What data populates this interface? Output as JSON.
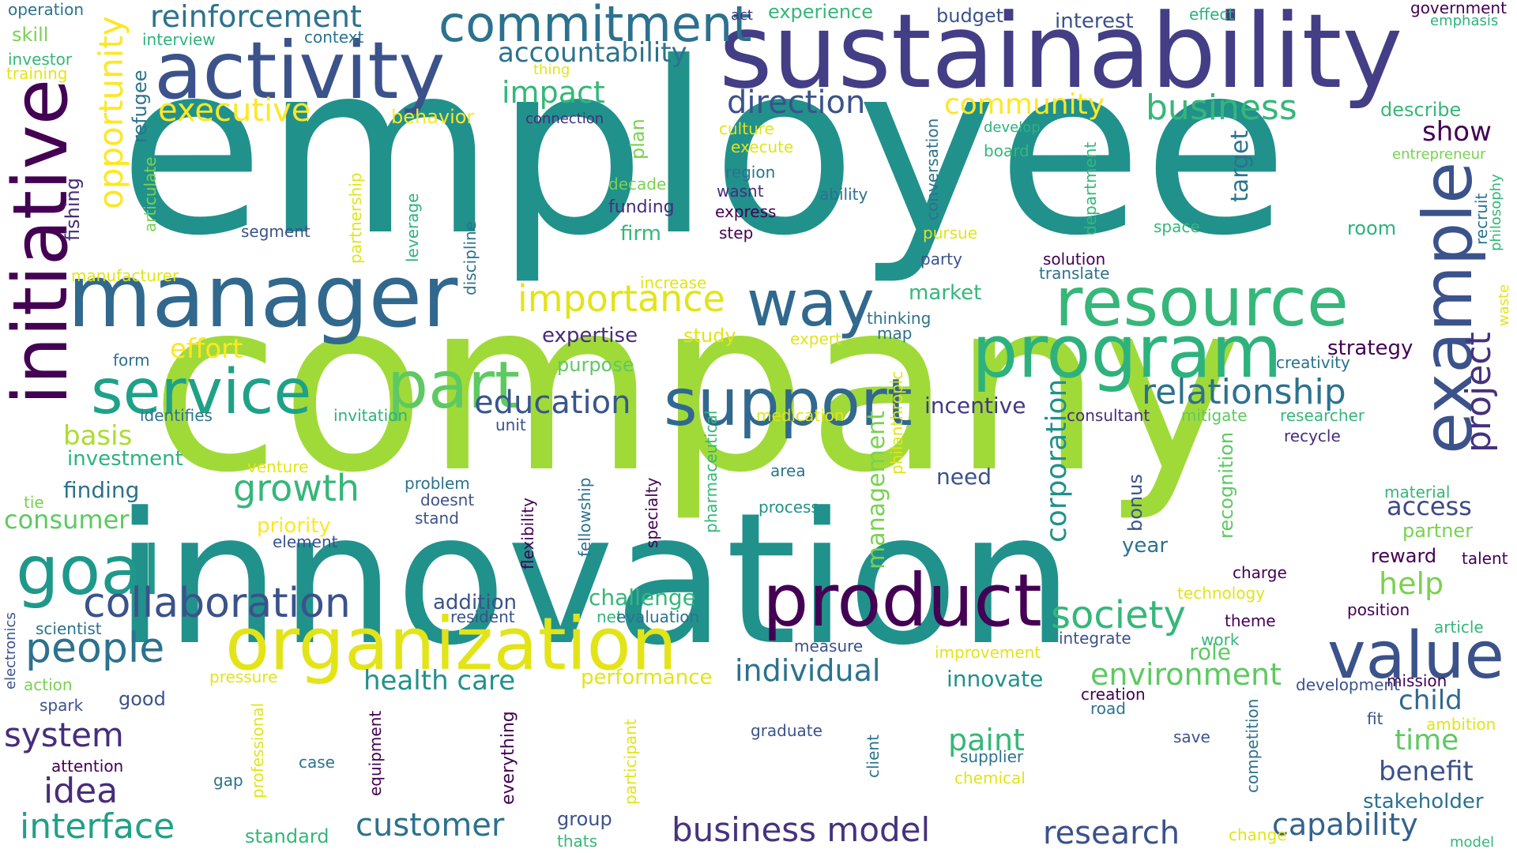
{
  "words": [
    {
      "text": "employee",
      "color": "#21918c"
    },
    {
      "text": "company",
      "color": "#a0da39"
    },
    {
      "text": "innovation",
      "color": "#21918c"
    },
    {
      "text": "sustainability",
      "color": "#433e85"
    },
    {
      "text": "manager",
      "color": "#31688e"
    },
    {
      "text": "activity",
      "color": "#3b528b"
    },
    {
      "text": "initiative",
      "color": "#440154"
    },
    {
      "text": "product",
      "color": "#440154"
    },
    {
      "text": "organization",
      "color": "#e2e418"
    },
    {
      "text": "program",
      "color": "#2db27d"
    },
    {
      "text": "resource",
      "color": "#35b779"
    },
    {
      "text": "example",
      "color": "#3b528b"
    },
    {
      "text": "support",
      "color": "#31688e"
    },
    {
      "text": "part",
      "color": "#5ec962"
    },
    {
      "text": "goal",
      "color": "#1f988b"
    },
    {
      "text": "service",
      "color": "#1fa187"
    },
    {
      "text": "value",
      "color": "#3b528b"
    },
    {
      "text": "way",
      "color": "#31688e"
    },
    {
      "text": "commitment",
      "color": "#2c728e"
    },
    {
      "text": "collaboration",
      "color": "#3b528b"
    },
    {
      "text": "people",
      "color": "#2c728e"
    },
    {
      "text": "project",
      "color": "#46327e"
    },
    {
      "text": "relationship",
      "color": "#2c728e"
    },
    {
      "text": "society",
      "color": "#35b779"
    },
    {
      "text": "importance",
      "color": "#e2e418"
    },
    {
      "text": "education",
      "color": "#39568c"
    },
    {
      "text": "business",
      "color": "#35b779"
    },
    {
      "text": "opportunity",
      "color": "#fde725"
    },
    {
      "text": "direction",
      "color": "#3b528b"
    },
    {
      "text": "reinforcement",
      "color": "#2c728e"
    },
    {
      "text": "interface",
      "color": "#1fa187"
    },
    {
      "text": "customer",
      "color": "#2c728e"
    },
    {
      "text": "business model",
      "color": "#46327e"
    },
    {
      "text": "research",
      "color": "#3b528b"
    },
    {
      "text": "capability",
      "color": "#33638d"
    },
    {
      "text": "idea",
      "color": "#472d7b"
    },
    {
      "text": "system",
      "color": "#472d7b"
    },
    {
      "text": "individual",
      "color": "#2c728e"
    },
    {
      "text": "environment",
      "color": "#5ec962"
    },
    {
      "text": "growth",
      "color": "#35b779"
    },
    {
      "text": "community",
      "color": "#fde725"
    },
    {
      "text": "executive",
      "color": "#fde725"
    },
    {
      "text": "impact",
      "color": "#35b779"
    },
    {
      "text": "accountability",
      "color": "#2c728e"
    },
    {
      "text": "corporation",
      "color": "#21918c"
    },
    {
      "text": "management",
      "color": "#7ad151"
    },
    {
      "text": "time",
      "color": "#5ec962"
    },
    {
      "text": "benefit",
      "color": "#3b528b"
    },
    {
      "text": "child",
      "color": "#31688e"
    },
    {
      "text": "help",
      "color": "#7ad151"
    },
    {
      "text": "access",
      "color": "#3e4989"
    },
    {
      "text": "show",
      "color": "#440154"
    },
    {
      "text": "target",
      "color": "#2c728e"
    },
    {
      "text": "health care",
      "color": "#21918c"
    },
    {
      "text": "paint",
      "color": "#35b779"
    },
    {
      "text": "effort",
      "color": "#fde725"
    },
    {
      "text": "basis",
      "color": "#addc30"
    },
    {
      "text": "consumer",
      "color": "#5ec962"
    },
    {
      "text": "stakeholder",
      "color": "#2c728e"
    },
    {
      "text": "challenge",
      "color": "#35b779"
    },
    {
      "text": "need",
      "color": "#3b528b"
    },
    {
      "text": "incentive",
      "color": "#443983"
    },
    {
      "text": "strategy",
      "color": "#440154"
    },
    {
      "text": "expertise",
      "color": "#472d7b"
    },
    {
      "text": "finding",
      "color": "#2c728e"
    },
    {
      "text": "investment",
      "color": "#2db27d"
    },
    {
      "text": "market",
      "color": "#35b779"
    },
    {
      "text": "firm",
      "color": "#35b779"
    },
    {
      "text": "addition",
      "color": "#3b528b"
    },
    {
      "text": "priority",
      "color": "#fde725"
    },
    {
      "text": "innovate",
      "color": "#21918c"
    },
    {
      "text": "recognition",
      "color": "#5ec962"
    },
    {
      "text": "year",
      "color": "#2c728e"
    },
    {
      "text": "role",
      "color": "#5ec962"
    },
    {
      "text": "bonus",
      "color": "#3b528b"
    },
    {
      "text": "reward",
      "color": "#440154"
    },
    {
      "text": "partner",
      "color": "#7ad151"
    },
    {
      "text": "study",
      "color": "#e2e418"
    },
    {
      "text": "purpose",
      "color": "#5ec962"
    },
    {
      "text": "performance",
      "color": "#e2e418"
    },
    {
      "text": "budget",
      "color": "#3b528b"
    },
    {
      "text": "interest",
      "color": "#3b528b"
    },
    {
      "text": "experience",
      "color": "#35b779"
    },
    {
      "text": "plan",
      "color": "#7ad151"
    },
    {
      "text": "behavior",
      "color": "#fde725"
    },
    {
      "text": "describe",
      "color": "#35b779"
    },
    {
      "text": "room",
      "color": "#2db27d"
    },
    {
      "text": "good",
      "color": "#3b528b"
    },
    {
      "text": "group",
      "color": "#3b528b"
    },
    {
      "text": "fishing",
      "color": "#472d7b"
    },
    {
      "text": "refugee",
      "color": "#2c728e"
    },
    {
      "text": "everything",
      "color": "#440154"
    },
    {
      "text": "operation",
      "color": "#2c728e"
    },
    {
      "text": "skill",
      "color": "#7ad151"
    },
    {
      "text": "investor",
      "color": "#35b779"
    },
    {
      "text": "training",
      "color": "#e2e418"
    },
    {
      "text": "interview",
      "color": "#2db27d"
    },
    {
      "text": "context",
      "color": "#2c728e"
    },
    {
      "text": "act",
      "color": "#472d7b"
    },
    {
      "text": "effect",
      "color": "#2db27d"
    },
    {
      "text": "government",
      "color": "#440154"
    },
    {
      "text": "emphasis",
      "color": "#2db27d"
    },
    {
      "text": "thing",
      "color": "#e2e418"
    },
    {
      "text": "connection",
      "color": "#472d7b"
    },
    {
      "text": "culture",
      "color": "#e2e418"
    },
    {
      "text": "execute",
      "color": "#e2e418"
    },
    {
      "text": "develop",
      "color": "#2db27d"
    },
    {
      "text": "board",
      "color": "#35b779"
    },
    {
      "text": "entrepreneur",
      "color": "#7ad151"
    },
    {
      "text": "conversation",
      "color": "#2c728e"
    },
    {
      "text": "department",
      "color": "#35b779"
    },
    {
      "text": "region",
      "color": "#2c728e"
    },
    {
      "text": "wasnt",
      "color": "#472d7b"
    },
    {
      "text": "ability",
      "color": "#2c728e"
    },
    {
      "text": "decade",
      "color": "#7ad151"
    },
    {
      "text": "funding",
      "color": "#472d7b"
    },
    {
      "text": "express",
      "color": "#440154"
    },
    {
      "text": "step",
      "color": "#440154"
    },
    {
      "text": "pursue",
      "color": "#e2e418"
    },
    {
      "text": "space",
      "color": "#35b779"
    },
    {
      "text": "recruit",
      "color": "#2c728e"
    },
    {
      "text": "philosophy",
      "color": "#35b779"
    },
    {
      "text": "segment",
      "color": "#3b528b"
    },
    {
      "text": "partnership",
      "color": "#e2e418"
    },
    {
      "text": "leverage",
      "color": "#2db27d"
    },
    {
      "text": "discipline",
      "color": "#2c728e"
    },
    {
      "text": "party",
      "color": "#3b528b"
    },
    {
      "text": "solution",
      "color": "#440154"
    },
    {
      "text": "translate",
      "color": "#2c728e"
    },
    {
      "text": "articulate",
      "color": "#7ad151"
    },
    {
      "text": "manufacturer",
      "color": "#e2e418"
    },
    {
      "text": "increase",
      "color": "#e2e418"
    },
    {
      "text": "waste",
      "color": "#e2e418"
    },
    {
      "text": "thinking",
      "color": "#2c728e"
    },
    {
      "text": "map",
      "color": "#2c728e"
    },
    {
      "text": "expert",
      "color": "#e2e418"
    },
    {
      "text": "form",
      "color": "#2c728e"
    },
    {
      "text": "creativity",
      "color": "#2c728e"
    },
    {
      "text": "philanthropic",
      "color": "#e2e418"
    },
    {
      "text": "identifies",
      "color": "#2c728e"
    },
    {
      "text": "invitation",
      "color": "#2db27d"
    },
    {
      "text": "medication",
      "color": "#e2e418"
    },
    {
      "text": "consultant",
      "color": "#472d7b"
    },
    {
      "text": "mitigate",
      "color": "#5ec962"
    },
    {
      "text": "researcher",
      "color": "#35b779"
    },
    {
      "text": "unit",
      "color": "#3b528b"
    },
    {
      "text": "recycle",
      "color": "#472d7b"
    },
    {
      "text": "venture",
      "color": "#e2e418"
    },
    {
      "text": "area",
      "color": "#2c728e"
    },
    {
      "text": "problem",
      "color": "#2c728e"
    },
    {
      "text": "doesnt",
      "color": "#3b528b"
    },
    {
      "text": "stand",
      "color": "#3b528b"
    },
    {
      "text": "material",
      "color": "#35b779"
    },
    {
      "text": "process",
      "color": "#21918c"
    },
    {
      "text": "tie",
      "color": "#7ad151"
    },
    {
      "text": "element",
      "color": "#3b528b"
    },
    {
      "text": "pharmaceutical",
      "color": "#35b779"
    },
    {
      "text": "fellowship",
      "color": "#2c728e"
    },
    {
      "text": "specialty",
      "color": "#440154"
    },
    {
      "text": "flexibility",
      "color": "#440154"
    },
    {
      "text": "talent",
      "color": "#440154"
    },
    {
      "text": "charge",
      "color": "#440154"
    },
    {
      "text": "technology",
      "color": "#e2e418"
    },
    {
      "text": "position",
      "color": "#440154"
    },
    {
      "text": "theme",
      "color": "#440154"
    },
    {
      "text": "article",
      "color": "#35b779"
    },
    {
      "text": "resident",
      "color": "#3b528b"
    },
    {
      "text": "net",
      "color": "#35b779"
    },
    {
      "text": "evaluation",
      "color": "#2c728e"
    },
    {
      "text": "scientist",
      "color": "#2c728e"
    },
    {
      "text": "electronics",
      "color": "#3b528b"
    },
    {
      "text": "measure",
      "color": "#3b528b"
    },
    {
      "text": "integrate",
      "color": "#3b528b"
    },
    {
      "text": "work",
      "color": "#35b779"
    },
    {
      "text": "improvement",
      "color": "#e2e418"
    },
    {
      "text": "pressure",
      "color": "#e2e418"
    },
    {
      "text": "action",
      "color": "#7ad151"
    },
    {
      "text": "spark",
      "color": "#3b528b"
    },
    {
      "text": "mission",
      "color": "#440154"
    },
    {
      "text": "development",
      "color": "#3b528b"
    },
    {
      "text": "creation",
      "color": "#440154"
    },
    {
      "text": "road",
      "color": "#2c728e"
    },
    {
      "text": "ambition",
      "color": "#e2e418"
    },
    {
      "text": "fit",
      "color": "#3b528b"
    },
    {
      "text": "graduate",
      "color": "#3b528b"
    },
    {
      "text": "save",
      "color": "#3b528b"
    },
    {
      "text": "professional",
      "color": "#e2e418"
    },
    {
      "text": "equipment",
      "color": "#440154"
    },
    {
      "text": "participant",
      "color": "#e2e418"
    },
    {
      "text": "client",
      "color": "#2c728e"
    },
    {
      "text": "supplier",
      "color": "#2c728e"
    },
    {
      "text": "chemical",
      "color": "#e2e418"
    },
    {
      "text": "competition",
      "color": "#2c728e"
    },
    {
      "text": "attention",
      "color": "#440154"
    },
    {
      "text": "gap",
      "color": "#2c728e"
    },
    {
      "text": "case",
      "color": "#2c728e"
    },
    {
      "text": "standard",
      "color": "#35b779"
    },
    {
      "text": "thats",
      "color": "#35b779"
    },
    {
      "text": "change",
      "color": "#e2e418"
    },
    {
      "text": "model",
      "color": "#35b779"
    }
  ]
}
